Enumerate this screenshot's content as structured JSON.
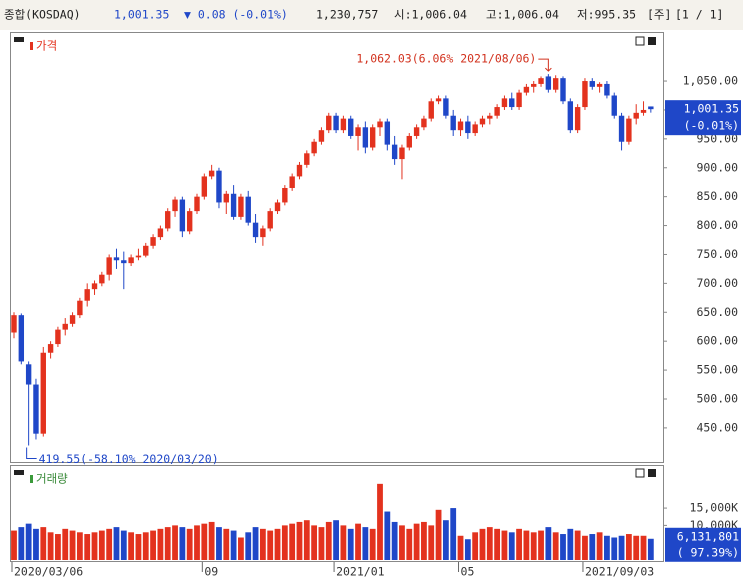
{
  "header": {
    "name": "종합(KOSDAQ)",
    "price": "1,001.35",
    "change": "▼ 0.08 (-0.01%)",
    "volume": "1,230,757",
    "open": "시:1,006.04",
    "high": "고:1,006.04",
    "low": "저:995.35",
    "period": "[주]",
    "page": "[1 / 1]"
  },
  "chart_data": [
    {
      "type": "candlestick",
      "title": "가격",
      "up_color": "#e3321e",
      "down_color": "#1f47c8",
      "categories": [
        "2020/03/06",
        null,
        null,
        null,
        null,
        null,
        null,
        null,
        null,
        null,
        null,
        null,
        null,
        null,
        null,
        null,
        null,
        null,
        null,
        null,
        null,
        null,
        null,
        null,
        null,
        null,
        "09",
        null,
        null,
        null,
        null,
        null,
        null,
        null,
        null,
        null,
        null,
        null,
        null,
        null,
        null,
        null,
        null,
        null,
        "2021/01",
        null,
        null,
        null,
        null,
        null,
        null,
        null,
        null,
        null,
        null,
        null,
        null,
        null,
        null,
        null,
        null,
        "05",
        null,
        null,
        null,
        null,
        null,
        null,
        null,
        null,
        null,
        null,
        null,
        null,
        null,
        null,
        null,
        null,
        "2021/09/03",
        null,
        null,
        null,
        null,
        null,
        null,
        null,
        null,
        null
      ],
      "ohlc": [
        [
          615,
          650,
          605,
          645
        ],
        [
          645,
          648,
          560,
          565
        ],
        [
          560,
          565,
          419.55,
          525
        ],
        [
          525,
          535,
          430,
          440
        ],
        [
          440,
          590,
          435,
          580
        ],
        [
          580,
          600,
          570,
          595
        ],
        [
          595,
          625,
          590,
          620
        ],
        [
          620,
          640,
          610,
          630
        ],
        [
          630,
          650,
          625,
          645
        ],
        [
          645,
          675,
          640,
          670
        ],
        [
          670,
          700,
          660,
          690
        ],
        [
          690,
          705,
          680,
          700
        ],
        [
          700,
          720,
          695,
          715
        ],
        [
          715,
          750,
          705,
          745
        ],
        [
          745,
          760,
          725,
          740
        ],
        [
          740,
          755,
          690,
          735
        ],
        [
          735,
          750,
          730,
          745
        ],
        [
          745,
          760,
          740,
          748
        ],
        [
          748,
          770,
          745,
          765
        ],
        [
          765,
          785,
          760,
          780
        ],
        [
          780,
          800,
          775,
          795
        ],
        [
          795,
          830,
          790,
          825
        ],
        [
          825,
          850,
          815,
          845
        ],
        [
          845,
          850,
          780,
          790
        ],
        [
          790,
          830,
          785,
          825
        ],
        [
          825,
          855,
          820,
          850
        ],
        [
          850,
          890,
          845,
          885
        ],
        [
          885,
          905,
          880,
          895
        ],
        [
          895,
          900,
          830,
          840
        ],
        [
          840,
          860,
          820,
          855
        ],
        [
          855,
          870,
          810,
          815
        ],
        [
          815,
          855,
          810,
          850
        ],
        [
          850,
          860,
          800,
          805
        ],
        [
          805,
          820,
          770,
          780
        ],
        [
          780,
          800,
          765,
          795
        ],
        [
          795,
          830,
          790,
          825
        ],
        [
          825,
          845,
          820,
          840
        ],
        [
          840,
          870,
          835,
          865
        ],
        [
          865,
          890,
          860,
          885
        ],
        [
          885,
          910,
          880,
          905
        ],
        [
          905,
          930,
          900,
          925
        ],
        [
          925,
          950,
          920,
          945
        ],
        [
          945,
          970,
          940,
          965
        ],
        [
          965,
          995,
          960,
          990
        ],
        [
          990,
          995,
          960,
          965
        ],
        [
          965,
          990,
          960,
          985
        ],
        [
          985,
          990,
          950,
          955
        ],
        [
          955,
          975,
          930,
          970
        ],
        [
          970,
          980,
          925,
          935
        ],
        [
          935,
          975,
          930,
          970
        ],
        [
          970,
          985,
          955,
          980
        ],
        [
          980,
          985,
          930,
          940
        ],
        [
          940,
          955,
          905,
          915
        ],
        [
          915,
          940,
          880,
          935
        ],
        [
          935,
          960,
          930,
          955
        ],
        [
          955,
          975,
          950,
          970
        ],
        [
          970,
          990,
          965,
          985
        ],
        [
          985,
          1020,
          980,
          1015
        ],
        [
          1015,
          1025,
          1010,
          1020
        ],
        [
          1020,
          1025,
          985,
          990
        ],
        [
          990,
          1000,
          955,
          965
        ],
        [
          965,
          985,
          955,
          980
        ],
        [
          980,
          990,
          950,
          960
        ],
        [
          960,
          980,
          955,
          975
        ],
        [
          975,
          990,
          970,
          985
        ],
        [
          985,
          995,
          975,
          990
        ],
        [
          990,
          1010,
          985,
          1005
        ],
        [
          1005,
          1025,
          1000,
          1020
        ],
        [
          1020,
          1030,
          1000,
          1005
        ],
        [
          1005,
          1035,
          1000,
          1030
        ],
        [
          1030,
          1045,
          1025,
          1040
        ],
        [
          1040,
          1050,
          1030,
          1045
        ],
        [
          1045,
          1058,
          1040,
          1055
        ],
        [
          1058,
          1062.03,
          1030,
          1035
        ],
        [
          1035,
          1060,
          1030,
          1055
        ],
        [
          1055,
          1058,
          1010,
          1015
        ],
        [
          1015,
          1020,
          960,
          965
        ],
        [
          965,
          1010,
          960,
          1005
        ],
        [
          1005,
          1055,
          1000,
          1050
        ],
        [
          1050,
          1055,
          1035,
          1040
        ],
        [
          1040,
          1048,
          1030,
          1045
        ],
        [
          1045,
          1050,
          1020,
          1025
        ],
        [
          1025,
          1030,
          985,
          990
        ],
        [
          990,
          995,
          930,
          945
        ],
        [
          945,
          990,
          940,
          985
        ],
        [
          985,
          1010,
          975,
          995
        ],
        [
          995,
          1015,
          990,
          1000
        ],
        [
          1006.04,
          1006.04,
          995.35,
          1001.35
        ]
      ],
      "ylim": [
        391,
        1121
      ],
      "yticks": [
        {
          "value": 450,
          "label": "450.00"
        },
        {
          "value": 500,
          "label": "500.00"
        },
        {
          "value": 550,
          "label": "550.00"
        },
        {
          "value": 600,
          "label": "600.00"
        },
        {
          "value": 650,
          "label": "650.00"
        },
        {
          "value": 700,
          "label": "700.00"
        },
        {
          "value": 750,
          "label": "750.00"
        },
        {
          "value": 800,
          "label": "800.00"
        },
        {
          "value": 850,
          "label": "850.00"
        },
        {
          "value": 900,
          "label": "900.00"
        },
        {
          "value": 950,
          "label": "950.00"
        },
        {
          "value": 1000,
          "label": "1,000.00"
        },
        {
          "value": 1050,
          "label": "1,050.00"
        }
      ],
      "last_price": {
        "value": 1001.35,
        "label": "1,001.35"
      },
      "last_change": "(-0.01%)",
      "annotations": [
        "1,062.03(6.06% 2021/08/06)",
        "419.55(-58.10% 2020/03/20)"
      ]
    },
    {
      "type": "bar",
      "title": "거래량",
      "values": [
        8500,
        9500,
        10500,
        9000,
        9500,
        8000,
        7500,
        9000,
        8500,
        8000,
        7500,
        8000,
        8500,
        9000,
        9500,
        8500,
        8000,
        7500,
        8000,
        8500,
        9000,
        9500,
        10000,
        9500,
        9000,
        10000,
        10500,
        11000,
        9500,
        9000,
        8500,
        6500,
        8000,
        9500,
        9000,
        8500,
        9000,
        10000,
        10500,
        11000,
        11500,
        10000,
        9500,
        11000,
        11500,
        10000,
        9000,
        10500,
        9500,
        9000,
        22000,
        14000,
        11000,
        10000,
        9000,
        10500,
        11000,
        10000,
        14500,
        11500,
        15000,
        7000,
        6000,
        8000,
        9000,
        9500,
        9000,
        8500,
        8000,
        9000,
        8500,
        8000,
        8500,
        9500,
        8000,
        7500,
        9000,
        8500,
        7000,
        7500,
        8000,
        7000,
        6500,
        7000,
        7500,
        7000,
        7000,
        6131.801
      ],
      "ylim": [
        0,
        26000
      ],
      "yticks": [
        {
          "value": 10000,
          "label": "10,000K"
        },
        {
          "value": 15000,
          "label": "15,000K"
        }
      ],
      "last_volume": {
        "value": 6131.801,
        "label": "6,131,801"
      },
      "last_pct": "( 97.39%)"
    }
  ]
}
